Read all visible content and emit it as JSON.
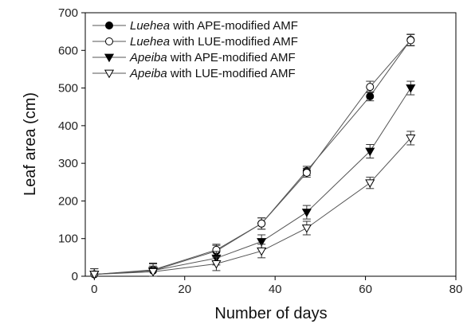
{
  "chart_data": {
    "type": "line",
    "xlabel": "Number of days",
    "ylabel": "Leaf area (cm)",
    "xlim": [
      -2,
      80
    ],
    "ylim": [
      0,
      700
    ],
    "xticks": [
      0,
      20,
      40,
      60,
      80
    ],
    "yticks": [
      0,
      100,
      200,
      300,
      400,
      500,
      600,
      700
    ],
    "x": [
      0,
      13,
      27,
      37,
      47,
      61,
      70
    ],
    "series": [
      {
        "species": "Luehea",
        "rest": " with APE-modified AMF",
        "marker": "filled-circle",
        "values": [
          5,
          15,
          67,
          140,
          280,
          478,
          628
        ],
        "errors": [
          15,
          18,
          15,
          15,
          12,
          12,
          15
        ]
      },
      {
        "species": "Luehea",
        "rest": " with LUE-modified AMF",
        "marker": "open-circle",
        "values": [
          5,
          17,
          70,
          140,
          275,
          503,
          627
        ],
        "errors": [
          15,
          18,
          15,
          15,
          12,
          15,
          15
        ]
      },
      {
        "species": "Apeiba",
        "rest": " with APE-modified AMF",
        "marker": "filled-triangle-down",
        "values": [
          5,
          15,
          48,
          92,
          170,
          332,
          500
        ],
        "errors": [
          15,
          18,
          18,
          18,
          18,
          18,
          18
        ]
      },
      {
        "species": "Apeiba",
        "rest": " with LUE-modified AMF",
        "marker": "open-triangle-down",
        "values": [
          5,
          12,
          33,
          67,
          128,
          248,
          367
        ],
        "errors": [
          15,
          15,
          18,
          18,
          18,
          15,
          18
        ]
      }
    ],
    "legend_position": "top-left",
    "grid": false
  }
}
